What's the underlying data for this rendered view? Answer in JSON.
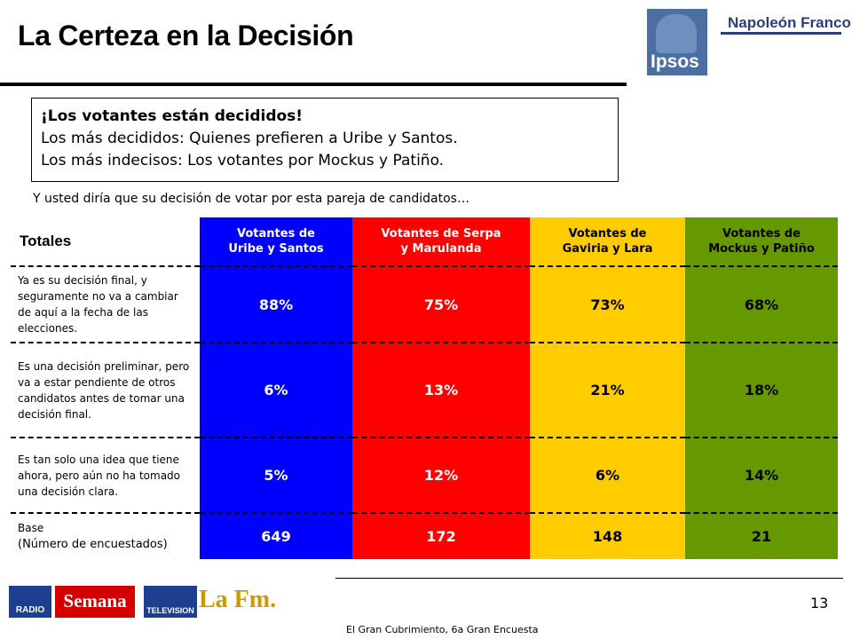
{
  "title": "La Certeza en la Decisión",
  "brand": {
    "ipsos": "Ipsos",
    "partner": "Napoleón Franco"
  },
  "callout": {
    "headline": "¡Los votantes están decididos!",
    "line2": "Los más decididos: Quienes prefieren a Uribe y Santos.",
    "line3": "Los más indecisos: Los votantes por Mockus y Patiño."
  },
  "question": "Y usted diría que su decisión de votar por esta pareja de candidatos…",
  "table": {
    "corner": "Totales",
    "columns": [
      {
        "line1": "Votantes de",
        "line2": "Uribe y Santos",
        "color": "#0000ff"
      },
      {
        "line1": "Votantes de Serpa",
        "line2": "y Marulanda",
        "color": "#ff0000"
      },
      {
        "line1": "Votantes de",
        "line2": "Gaviria y Lara",
        "color": "#ffcc00"
      },
      {
        "line1": "Votantes de",
        "line2": "Mockus y Patiño",
        "color": "#669900"
      }
    ],
    "rows": [
      {
        "label": "Ya es su decisión final, y seguramente no va a cambiar de aquí a la fecha de las elecciones.",
        "values": [
          "88%",
          "75%",
          "73%",
          "68%"
        ]
      },
      {
        "label": "Es una decisión preliminar, pero va a estar pendiente de otros candidatos antes de tomar una decisión final.",
        "values": [
          "6%",
          "13%",
          "21%",
          "18%"
        ]
      },
      {
        "label": "Es tan solo una idea que tiene ahora, pero aún no ha tomado una decisión clara.",
        "values": [
          "5%",
          "12%",
          "6%",
          "14%"
        ]
      },
      {
        "label_line1": "Base",
        "label_line2": "(Número de encuestados)",
        "values": [
          "649",
          "172",
          "148",
          "21"
        ]
      }
    ]
  },
  "footer_logos": {
    "rcn_radio": "RADIO",
    "semana": "Semana",
    "rcn_tv": "TELEVISION",
    "lafm": "La Fm."
  },
  "page_number": "13",
  "footer": "El Gran Cubrimiento, 6a Gran Encuesta"
}
